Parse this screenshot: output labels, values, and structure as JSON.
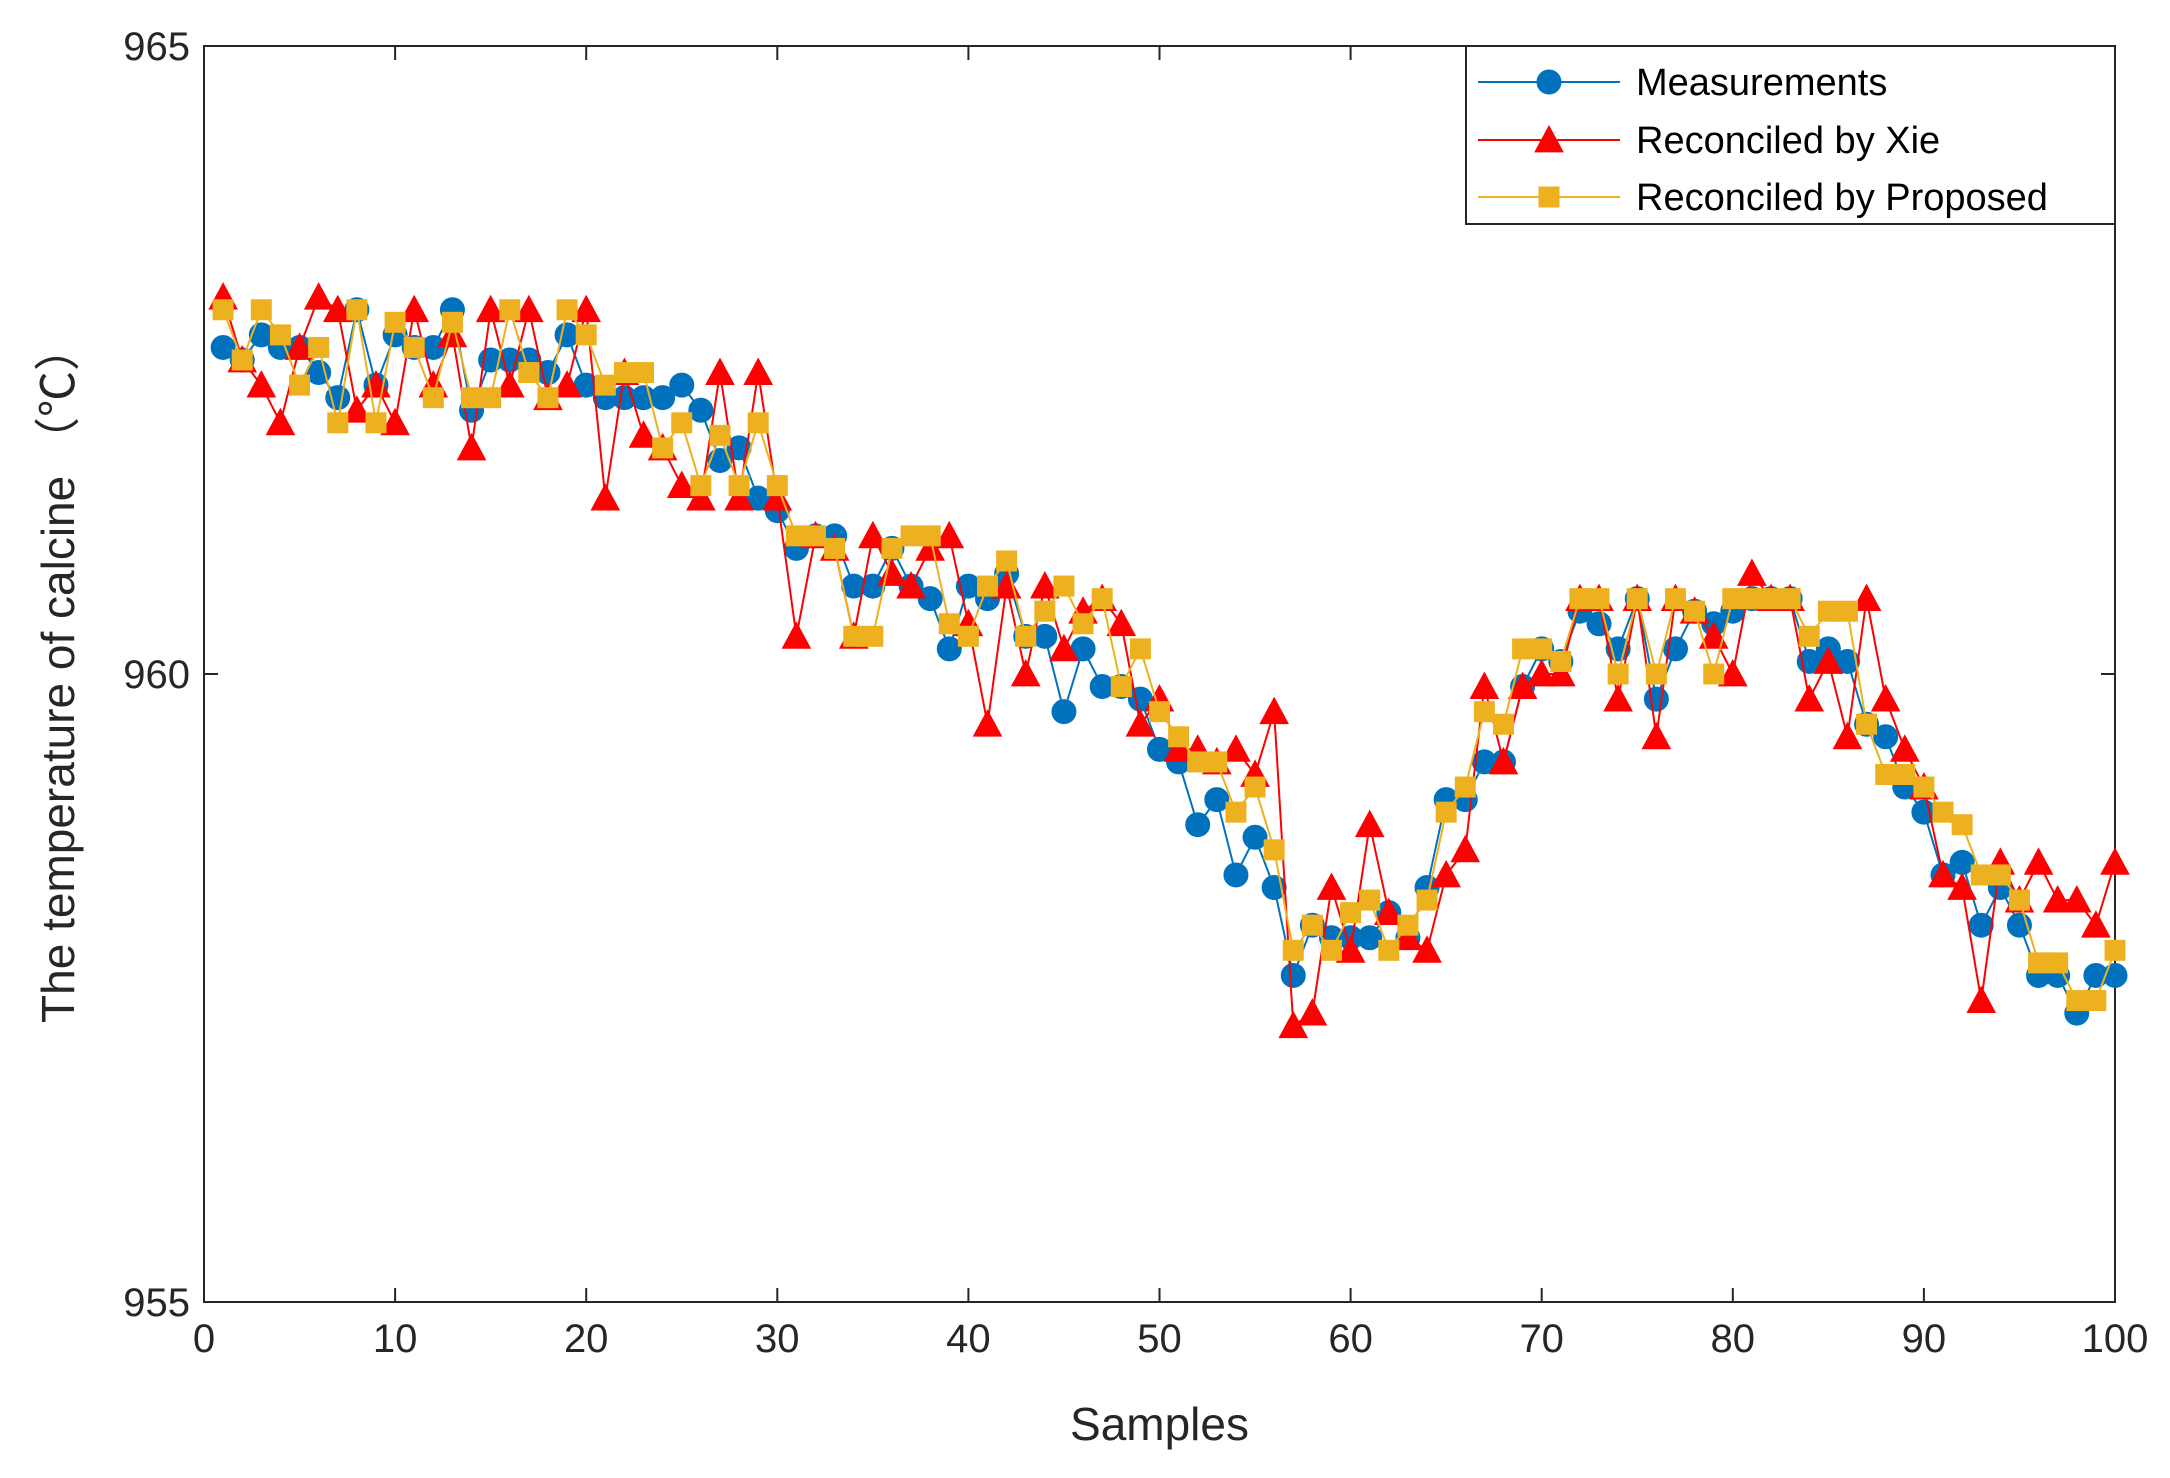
{
  "chart_data": {
    "type": "line",
    "title": "",
    "xlabel": "Samples",
    "ylabel": "The temperature of calcine （℃）",
    "xlim": [
      0,
      100
    ],
    "ylim": [
      955,
      965
    ],
    "xticks": [
      0,
      10,
      20,
      30,
      40,
      50,
      60,
      70,
      80,
      90,
      100
    ],
    "yticks": [
      955,
      960,
      965
    ],
    "grid": false,
    "legend_position": "top-right",
    "x": [
      1,
      2,
      3,
      4,
      5,
      6,
      7,
      8,
      9,
      10,
      11,
      12,
      13,
      14,
      15,
      16,
      17,
      18,
      19,
      20,
      21,
      22,
      23,
      24,
      25,
      26,
      27,
      28,
      29,
      30,
      31,
      32,
      33,
      34,
      35,
      36,
      37,
      38,
      39,
      40,
      41,
      42,
      43,
      44,
      45,
      46,
      47,
      48,
      49,
      50,
      51,
      52,
      53,
      54,
      55,
      56,
      57,
      58,
      59,
      60,
      61,
      62,
      63,
      64,
      65,
      66,
      67,
      68,
      69,
      70,
      71,
      72,
      73,
      74,
      75,
      76,
      77,
      78,
      79,
      80,
      81,
      82,
      83,
      84,
      85,
      86,
      87,
      88,
      89,
      90,
      91,
      92,
      93,
      94,
      95,
      96,
      97,
      98,
      99,
      100
    ],
    "series": [
      {
        "name": "Measurements",
        "color": "#0072BD",
        "marker": "circle",
        "values": [
          962.6,
          962.5,
          962.7,
          962.6,
          962.6,
          962.4,
          962.2,
          962.9,
          962.3,
          962.7,
          962.6,
          962.6,
          962.9,
          962.1,
          962.5,
          962.5,
          962.5,
          962.4,
          962.7,
          962.3,
          962.2,
          962.2,
          962.2,
          962.2,
          962.3,
          962.1,
          961.7,
          961.8,
          961.4,
          961.3,
          961.0,
          961.1,
          961.1,
          960.7,
          960.7,
          961.0,
          960.7,
          960.6,
          960.2,
          960.7,
          960.6,
          960.8,
          960.3,
          960.3,
          959.7,
          960.2,
          959.9,
          959.9,
          959.8,
          959.4,
          959.3,
          958.8,
          959.0,
          958.4,
          958.7,
          958.3,
          957.6,
          958.0,
          957.9,
          957.9,
          957.9,
          958.1,
          957.9,
          958.3,
          959.0,
          959.0,
          959.3,
          959.3,
          959.9,
          960.2,
          960.1,
          960.5,
          960.4,
          960.2,
          960.6,
          959.8,
          960.2,
          960.5,
          960.4,
          960.5,
          960.6,
          960.6,
          960.6,
          960.1,
          960.2,
          960.1,
          959.6,
          959.5,
          959.1,
          958.9,
          958.4,
          958.5,
          958.0,
          958.3,
          958.0,
          957.6,
          957.6,
          957.3,
          957.6,
          957.6
        ]
      },
      {
        "name": "Reconciled by Xie",
        "color": "#FF0000",
        "marker": "triangle",
        "values": [
          963.0,
          962.5,
          962.3,
          962.0,
          962.6,
          963.0,
          962.9,
          962.1,
          962.3,
          962.0,
          962.9,
          962.3,
          962.7,
          961.8,
          962.9,
          962.3,
          962.9,
          962.2,
          962.3,
          962.9,
          961.4,
          962.4,
          961.9,
          961.8,
          961.5,
          961.4,
          962.4,
          961.4,
          962.4,
          961.4,
          960.3,
          961.1,
          961.0,
          960.3,
          961.1,
          960.8,
          960.7,
          961.0,
          961.1,
          960.4,
          959.6,
          960.7,
          960.0,
          960.7,
          960.2,
          960.5,
          960.6,
          960.4,
          959.6,
          959.8,
          959.4,
          959.4,
          959.3,
          959.4,
          959.2,
          959.7,
          957.2,
          957.3,
          958.3,
          957.8,
          958.8,
          958.1,
          957.9,
          957.8,
          958.4,
          958.6,
          959.9,
          959.3,
          959.9,
          960.0,
          960.0,
          960.6,
          960.6,
          959.8,
          960.6,
          959.5,
          960.6,
          960.5,
          960.3,
          960.0,
          960.8,
          960.6,
          960.6,
          959.8,
          960.1,
          959.5,
          960.6,
          959.8,
          959.4,
          959.1,
          958.4,
          958.3,
          957.4,
          958.5,
          958.2,
          958.5,
          958.2,
          958.2,
          958.0,
          958.5
        ]
      },
      {
        "name": "Reconciled by Proposed",
        "color": "#EDB120",
        "marker": "square",
        "values": [
          962.9,
          962.5,
          962.9,
          962.7,
          962.3,
          962.6,
          962.0,
          962.9,
          962.0,
          962.8,
          962.6,
          962.2,
          962.8,
          962.2,
          962.2,
          962.9,
          962.4,
          962.2,
          962.9,
          962.7,
          962.3,
          962.4,
          962.4,
          961.8,
          962.0,
          961.5,
          961.9,
          961.5,
          962.0,
          961.5,
          961.1,
          961.1,
          961.0,
          960.3,
          960.3,
          961.0,
          961.1,
          961.1,
          960.4,
          960.3,
          960.7,
          960.9,
          960.3,
          960.5,
          960.7,
          960.4,
          960.6,
          959.9,
          960.2,
          959.7,
          959.5,
          959.3,
          959.3,
          958.9,
          959.1,
          958.6,
          957.8,
          958.0,
          957.8,
          958.1,
          958.2,
          957.8,
          958.0,
          958.2,
          958.9,
          959.1,
          959.7,
          959.6,
          960.2,
          960.2,
          960.1,
          960.6,
          960.6,
          960.0,
          960.6,
          960.0,
          960.6,
          960.5,
          960.0,
          960.6,
          960.6,
          960.6,
          960.6,
          960.3,
          960.5,
          960.5,
          959.6,
          959.2,
          959.2,
          959.1,
          958.9,
          958.8,
          958.4,
          958.4,
          958.2,
          957.7,
          957.7,
          957.4,
          957.4,
          957.8
        ]
      }
    ]
  }
}
